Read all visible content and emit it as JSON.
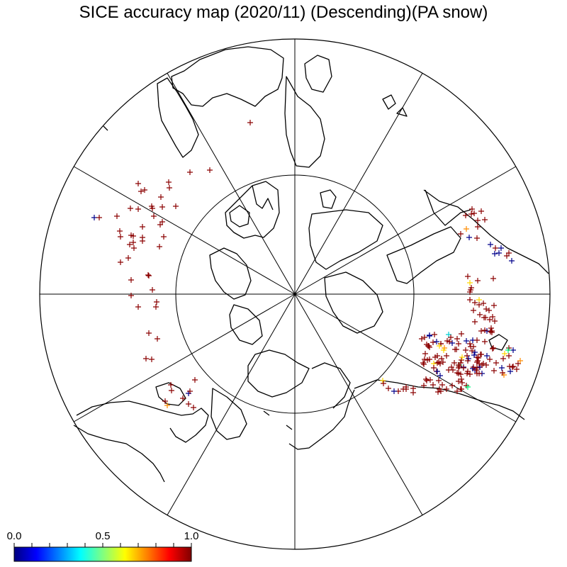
{
  "title": "SICE accuracy map (2020/11) (Descending)(PA snow)",
  "colorbar": {
    "min_label": "0.0",
    "mid_label": "0.5",
    "max_label": "1.0",
    "colors": [
      "#000080",
      "#0000ff",
      "#0080ff",
      "#00ffff",
      "#80ff80",
      "#ffff00",
      "#ff8000",
      "#ff0000",
      "#800000"
    ]
  },
  "map": {
    "projection": "north-polar-stereographic",
    "latitude_circles": 2,
    "meridian_spokes": 12,
    "coastline_color": "#000000",
    "marker_symbol": "+",
    "dominant_marker_color": "#8b0000"
  }
}
